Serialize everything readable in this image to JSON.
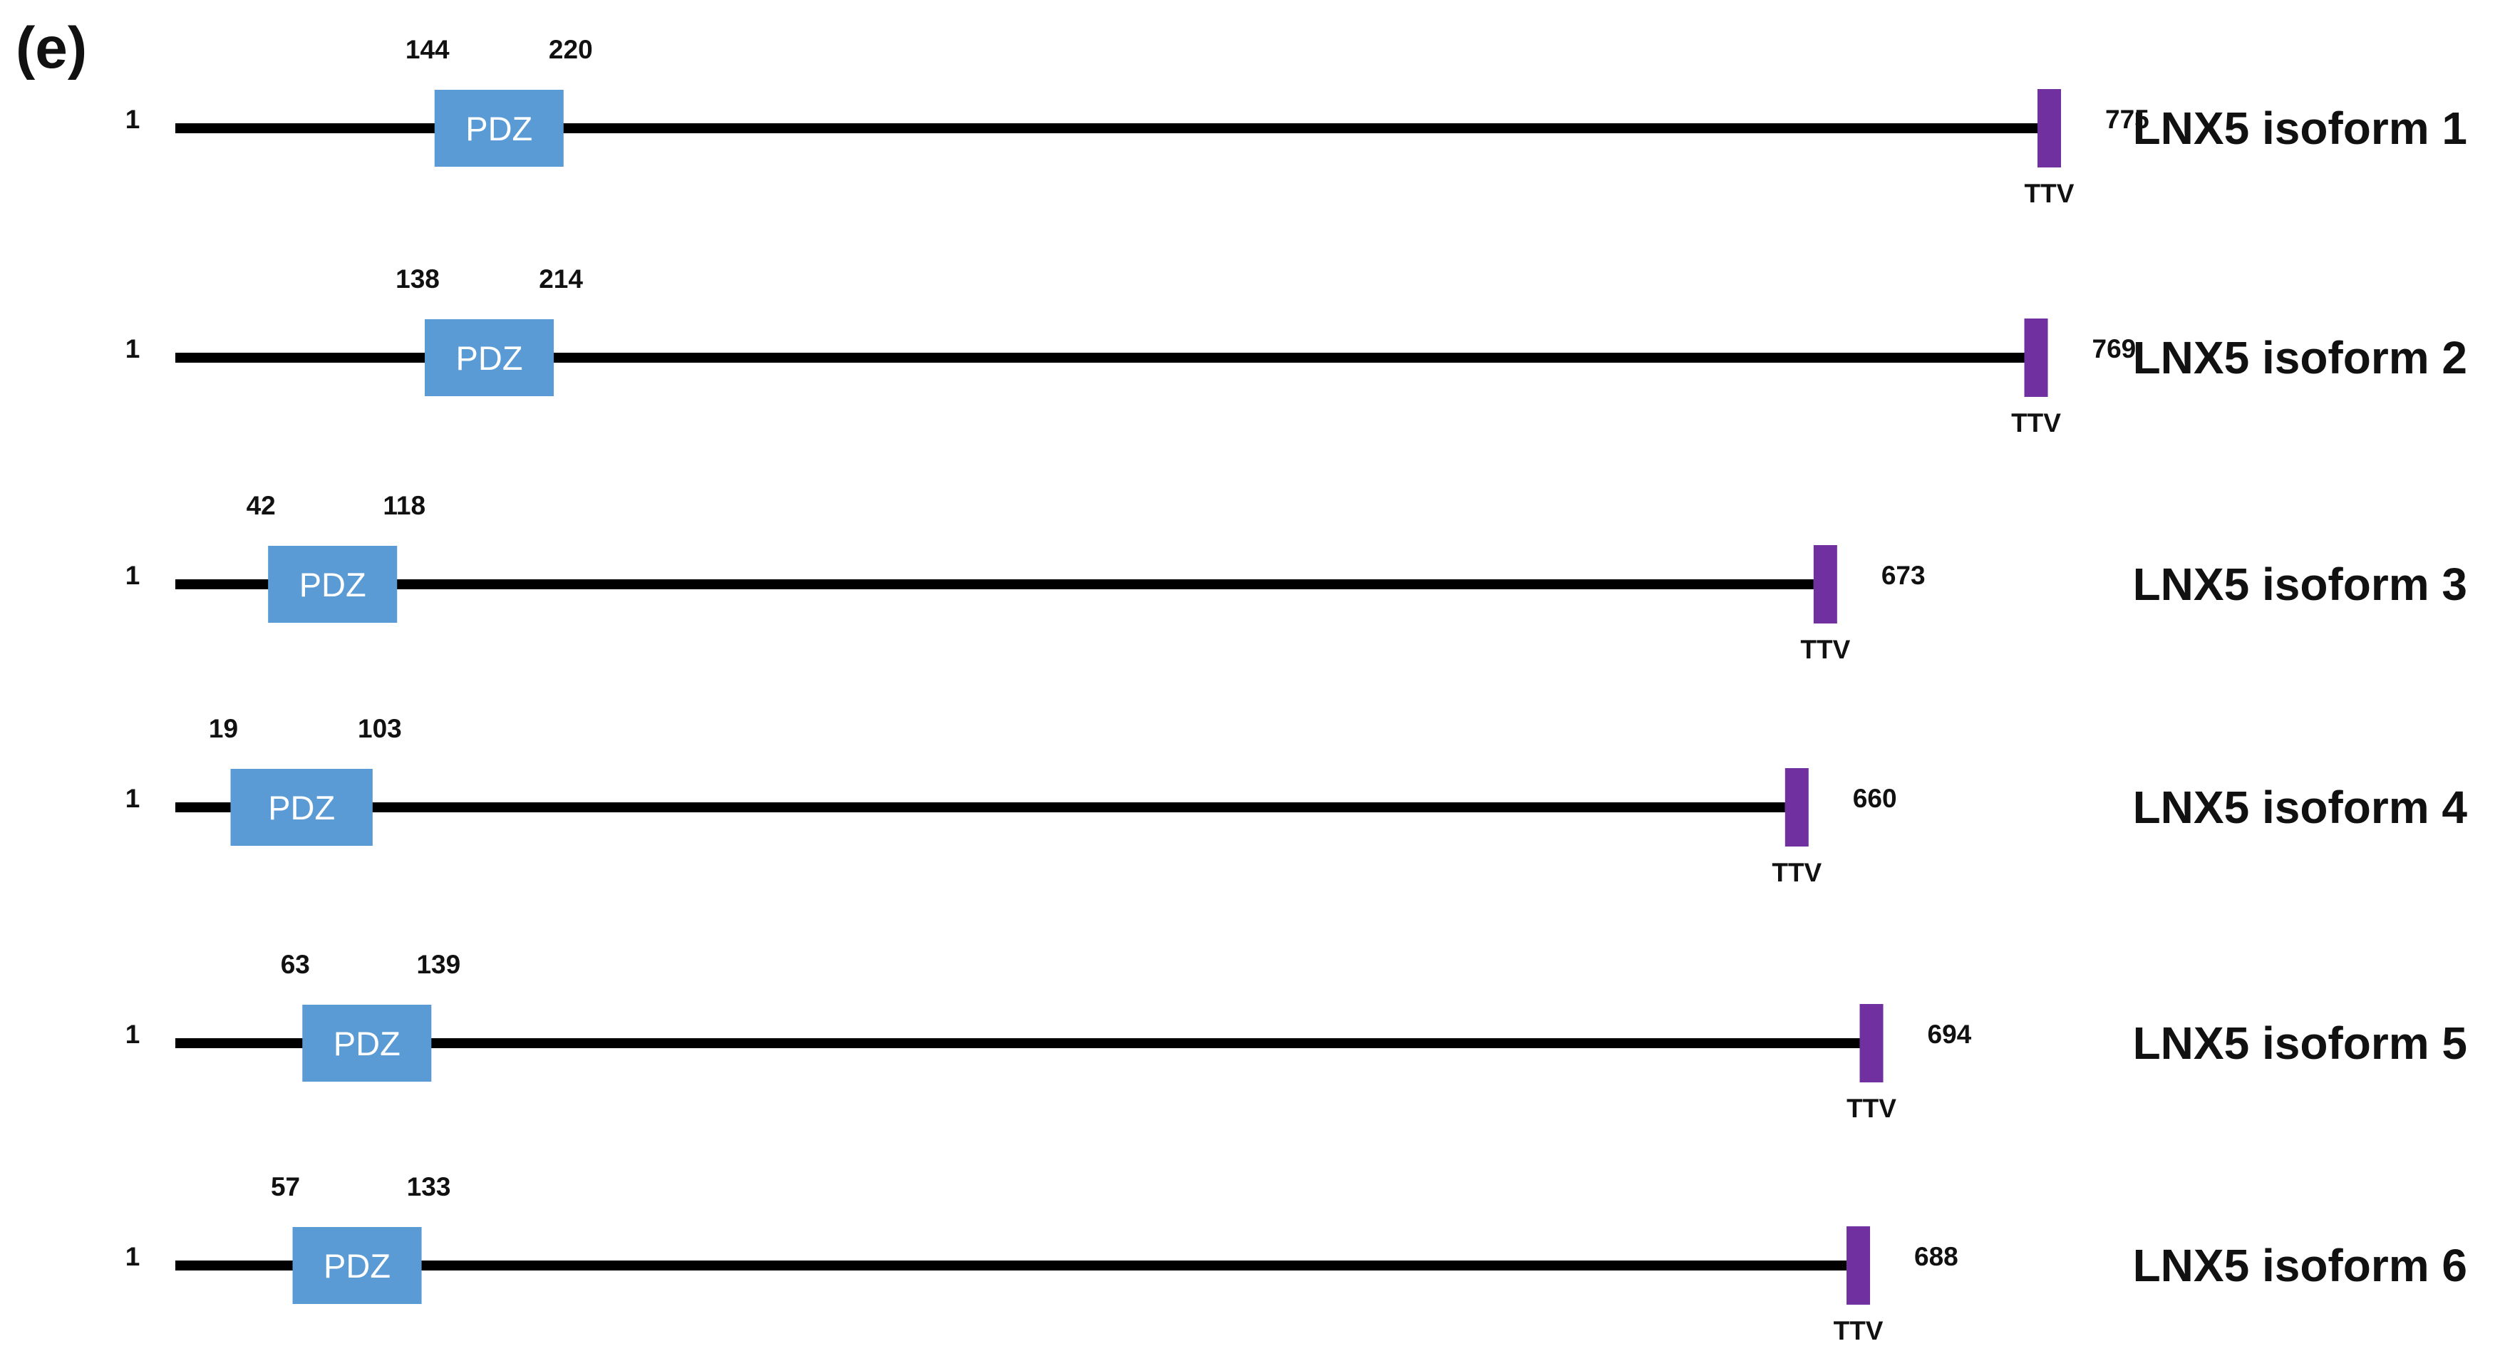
{
  "panel_label": "(e)",
  "colors": {
    "backbone": "#000000",
    "domain_fill": "#5b9bd5",
    "domain_text": "#ffffff",
    "motif_fill": "#7030a0",
    "text": "#111111",
    "background": "#ffffff"
  },
  "isoforms": [
    {
      "name": "LNX5 isoform 1",
      "start": "1",
      "end": "775",
      "domain": {
        "label": "PDZ",
        "start": "144",
        "end": "220"
      },
      "motif": "TTV"
    },
    {
      "name": "LNX5 isoform 2",
      "start": "1",
      "end": "769",
      "domain": {
        "label": "PDZ",
        "start": "138",
        "end": "214"
      },
      "motif": "TTV"
    },
    {
      "name": "LNX5 isoform 3",
      "start": "1",
      "end": "673",
      "domain": {
        "label": "PDZ",
        "start": "42",
        "end": "118"
      },
      "motif": "TTV"
    },
    {
      "name": "LNX5 isoform 4",
      "start": "1",
      "end": "660",
      "domain": {
        "label": "PDZ",
        "start": "19",
        "end": "103"
      },
      "motif": "TTV"
    },
    {
      "name": "LNX5 isoform 5",
      "start": "1",
      "end": "694",
      "domain": {
        "label": "PDZ",
        "start": "63",
        "end": "139"
      },
      "motif": "TTV"
    },
    {
      "name": "LNX5 isoform 6",
      "start": "1",
      "end": "688",
      "domain": {
        "label": "PDZ",
        "start": "57",
        "end": "133"
      },
      "motif": "TTV"
    }
  ]
}
